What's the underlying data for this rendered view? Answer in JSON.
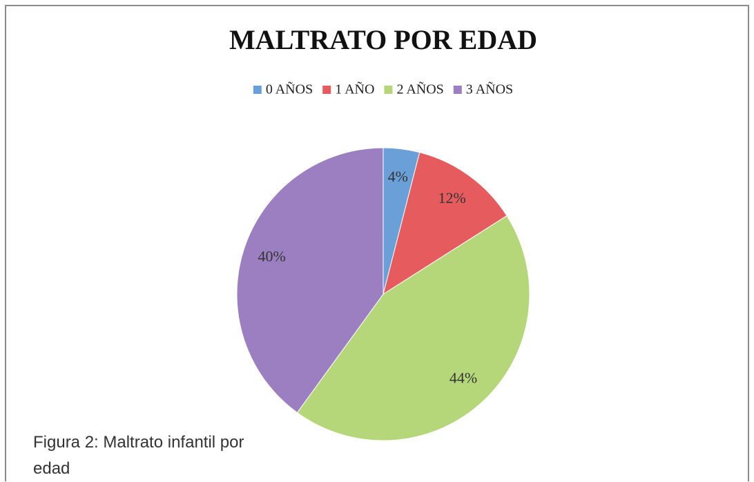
{
  "chart_data": {
    "type": "pie",
    "title": "MALTRATO POR EDAD",
    "categories": [
      "0 AÑOS",
      "1 AÑO",
      "2 AÑOS",
      "3 AÑOS"
    ],
    "values": [
      4,
      12,
      44,
      40
    ],
    "value_labels": [
      "4%",
      "12%",
      "44%",
      "40%"
    ],
    "colors": [
      "#6a9fd8",
      "#e65c5e",
      "#b5d77a",
      "#9b7fc0"
    ],
    "legend": "top"
  },
  "caption": "Figura 2: Maltrato infantil por edad"
}
